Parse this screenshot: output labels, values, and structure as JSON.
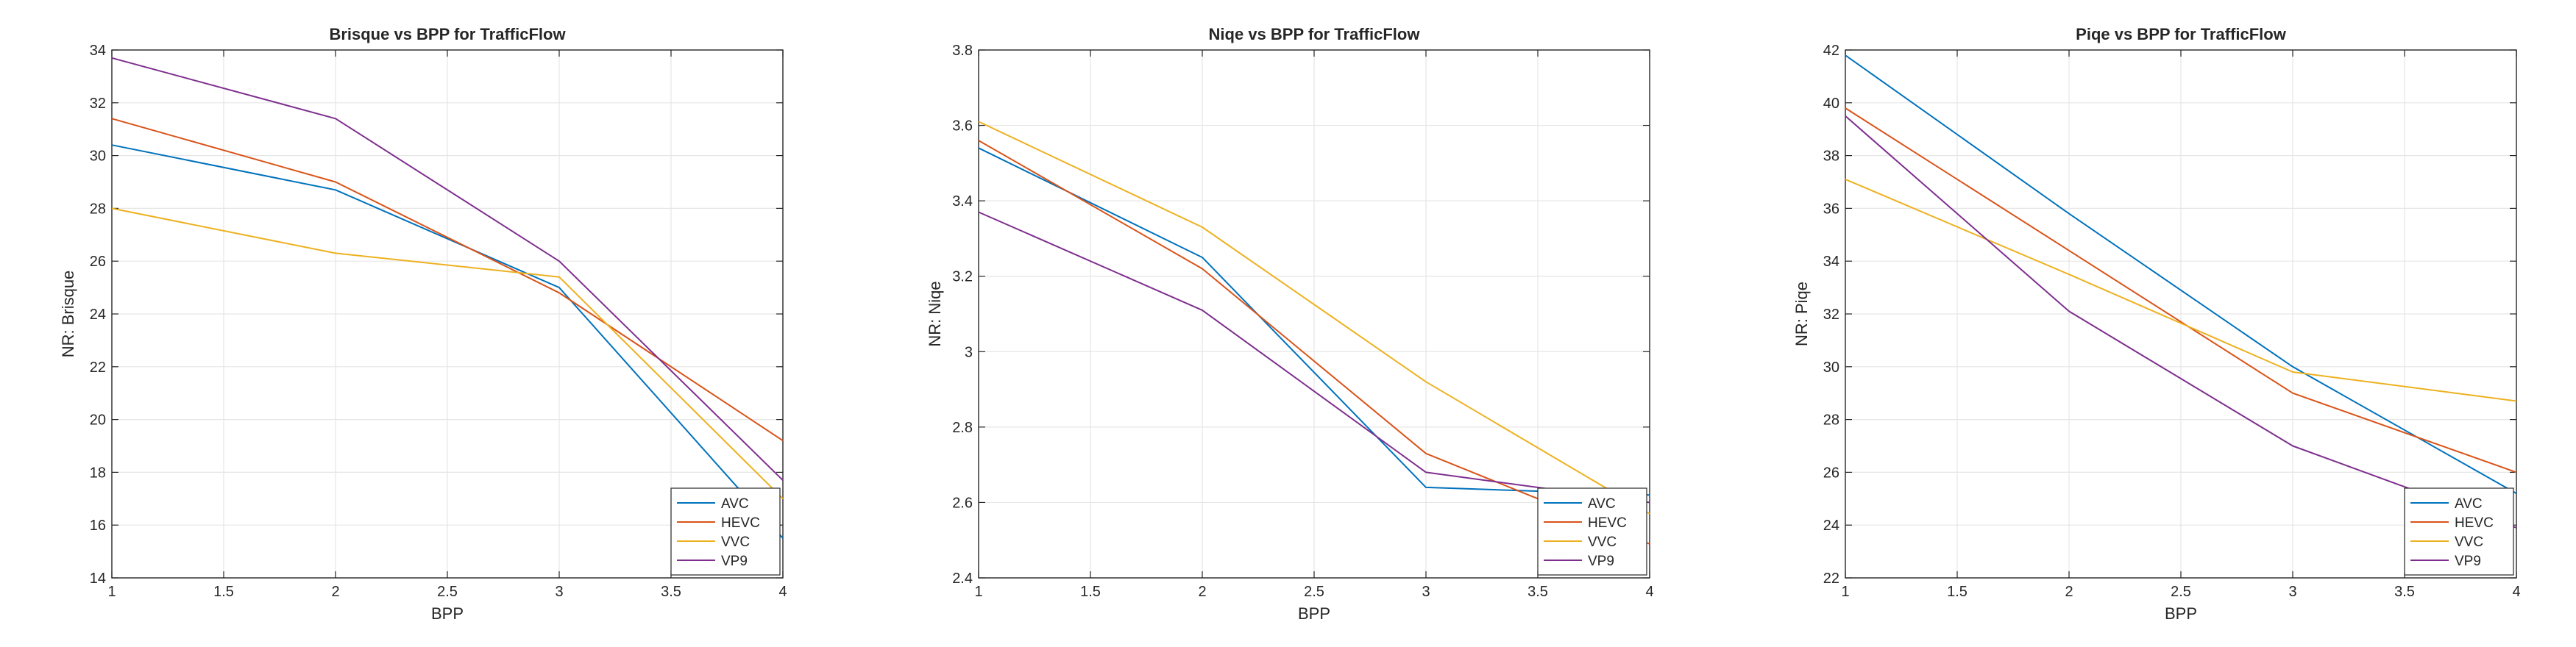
{
  "chart_data": [
    {
      "type": "line",
      "title": "Brisque vs BPP for TrafficFlow",
      "xlabel": "BPP",
      "ylabel": "NR: Brisque",
      "xlim": [
        1,
        4
      ],
      "ylim": [
        14,
        34
      ],
      "xticks": [
        1,
        1.5,
        2,
        2.5,
        3,
        3.5,
        4
      ],
      "xtick_labels": [
        "1",
        "1.5",
        "2",
        "2.5",
        "3",
        "3.5",
        "4"
      ],
      "yticks": [
        14,
        16,
        18,
        20,
        22,
        24,
        26,
        28,
        30,
        32,
        34
      ],
      "ytick_labels": [
        "14",
        "16",
        "18",
        "20",
        "22",
        "24",
        "26",
        "28",
        "30",
        "32",
        "34"
      ],
      "grid": true,
      "legend_position": "bottom-right",
      "x": [
        1,
        2,
        3,
        4
      ],
      "series": [
        {
          "name": "AVC",
          "color": "#0072BD",
          "values": [
            30.4,
            28.7,
            25.0,
            15.5
          ]
        },
        {
          "name": "HEVC",
          "color": "#D95319",
          "values": [
            31.4,
            29.0,
            24.8,
            19.2
          ]
        },
        {
          "name": "VVC",
          "color": "#EDB120",
          "values": [
            28.0,
            26.3,
            25.4,
            17.0
          ]
        },
        {
          "name": "VP9",
          "color": "#7E2F8E",
          "values": [
            33.7,
            31.4,
            26.0,
            17.7
          ]
        }
      ]
    },
    {
      "type": "line",
      "title": "Niqe vs BPP for TrafficFlow",
      "xlabel": "BPP",
      "ylabel": "NR: Niqe",
      "xlim": [
        1,
        4
      ],
      "ylim": [
        2.4,
        3.8
      ],
      "xticks": [
        1,
        1.5,
        2,
        2.5,
        3,
        3.5,
        4
      ],
      "xtick_labels": [
        "1",
        "1.5",
        "2",
        "2.5",
        "3",
        "3.5",
        "4"
      ],
      "yticks": [
        2.4,
        2.6,
        2.8,
        3.0,
        3.2,
        3.4,
        3.6,
        3.8
      ],
      "ytick_labels": [
        "2.4",
        "2.6",
        "2.8",
        "3",
        "3.2",
        "3.4",
        "3.6",
        "3.8"
      ],
      "grid": true,
      "legend_position": "bottom-right",
      "x": [
        1,
        2,
        3,
        4
      ],
      "series": [
        {
          "name": "AVC",
          "color": "#0072BD",
          "values": [
            3.54,
            3.25,
            2.64,
            2.62
          ]
        },
        {
          "name": "HEVC",
          "color": "#D95319",
          "values": [
            3.56,
            3.22,
            2.73,
            2.49
          ]
        },
        {
          "name": "VVC",
          "color": "#EDB120",
          "values": [
            3.61,
            3.33,
            2.92,
            2.57
          ]
        },
        {
          "name": "VP9",
          "color": "#7E2F8E",
          "values": [
            3.37,
            3.11,
            2.68,
            2.6
          ]
        }
      ]
    },
    {
      "type": "line",
      "title": "Piqe vs BPP for TrafficFlow",
      "xlabel": "BPP",
      "ylabel": "NR: Piqe",
      "xlim": [
        1,
        4
      ],
      "ylim": [
        22,
        42
      ],
      "xticks": [
        1,
        1.5,
        2,
        2.5,
        3,
        3.5,
        4
      ],
      "xtick_labels": [
        "1",
        "1.5",
        "2",
        "2.5",
        "3",
        "3.5",
        "4"
      ],
      "yticks": [
        22,
        24,
        26,
        28,
        30,
        32,
        34,
        36,
        38,
        40,
        42
      ],
      "ytick_labels": [
        "22",
        "24",
        "26",
        "28",
        "30",
        "32",
        "34",
        "36",
        "38",
        "40",
        "42"
      ],
      "grid": true,
      "legend_position": "bottom-right",
      "x": [
        1,
        2,
        3,
        4
      ],
      "series": [
        {
          "name": "AVC",
          "color": "#0072BD",
          "values": [
            41.8,
            35.8,
            30.0,
            25.2
          ]
        },
        {
          "name": "HEVC",
          "color": "#D95319",
          "values": [
            39.8,
            34.4,
            29.0,
            26.0
          ]
        },
        {
          "name": "VVC",
          "color": "#EDB120",
          "values": [
            37.1,
            33.5,
            29.8,
            28.7
          ]
        },
        {
          "name": "VP9",
          "color": "#7E2F8E",
          "values": [
            39.5,
            32.1,
            27.0,
            23.9
          ]
        }
      ]
    }
  ]
}
